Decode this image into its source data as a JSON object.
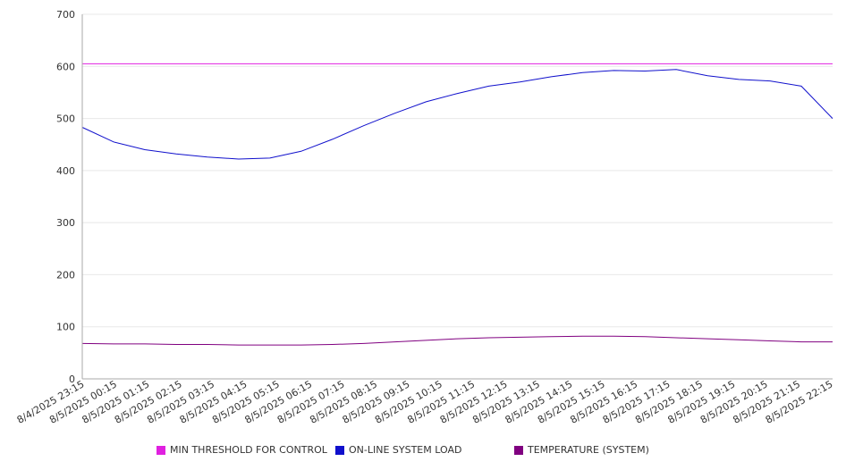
{
  "chart_data": {
    "type": "line",
    "title": "",
    "xlabel": "",
    "ylabel": "",
    "ylim": [
      0,
      700
    ],
    "yticks": [
      0,
      100,
      200,
      300,
      400,
      500,
      600,
      700
    ],
    "grid": true,
    "legend_position": "bottom",
    "xticks": [
      "8/4/2025 23:15",
      "8/5/2025 00:15",
      "8/5/2025 01:15",
      "8/5/2025 02:15",
      "8/5/2025 03:15",
      "8/5/2025 04:15",
      "8/5/2025 05:15",
      "8/5/2025 06:15",
      "8/5/2025 07:15",
      "8/5/2025 08:15",
      "8/5/2025 09:15",
      "8/5/2025 10:15",
      "8/5/2025 11:15",
      "8/5/2025 12:15",
      "8/5/2025 13:15",
      "8/5/2025 14:15",
      "8/5/2025 15:15",
      "8/5/2025 16:15",
      "8/5/2025 17:15",
      "8/5/2025 18:15",
      "8/5/2025 19:15",
      "8/5/2025 20:15",
      "8/5/2025 21:15",
      "8/5/2025 22:15"
    ],
    "series": [
      {
        "name": "MIN THRESHOLD FOR CONTROL",
        "color": "#e020e0",
        "values": [
          605,
          605,
          605,
          605,
          605,
          605,
          605,
          605,
          605,
          605,
          605,
          605,
          605,
          605,
          605,
          605,
          605,
          605,
          605,
          605,
          605,
          605,
          605,
          605,
          605
        ]
      },
      {
        "name": "ON-LINE SYSTEM LOAD",
        "color": "#1010cc",
        "values": [
          483,
          455,
          440,
          432,
          426,
          422,
          424,
          437,
          460,
          486,
          510,
          532,
          548,
          562,
          570,
          580,
          588,
          592,
          591,
          594,
          582,
          575,
          572,
          562,
          500
        ]
      },
      {
        "name": "TEMPERATURE (SYSTEM)",
        "color": "#800080",
        "values": [
          68,
          67,
          67,
          66,
          66,
          65,
          65,
          65,
          66,
          68,
          71,
          74,
          77,
          79,
          80,
          81,
          82,
          82,
          81,
          79,
          77,
          75,
          73,
          71,
          71
        ]
      }
    ]
  }
}
